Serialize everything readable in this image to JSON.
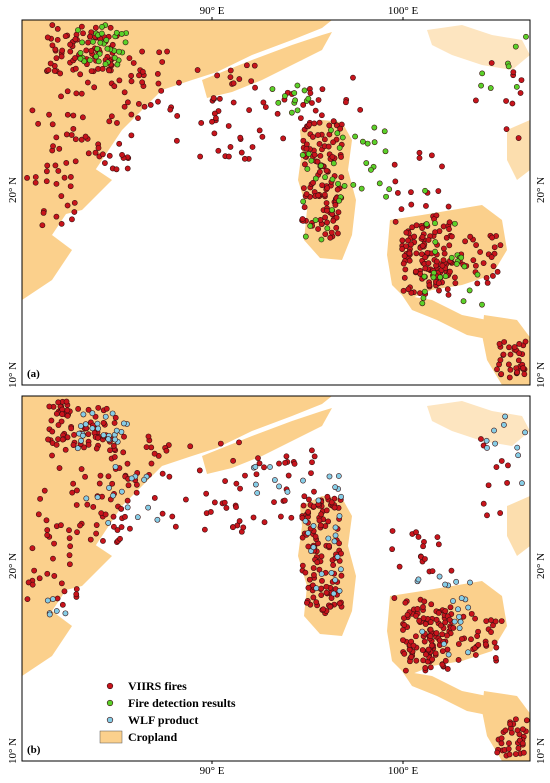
{
  "panels": [
    {
      "label": "(a)",
      "top_ticks": [
        "90° E",
        "100° E"
      ],
      "left_ticks": [
        "20° N",
        "10° N"
      ],
      "right_ticks": [
        "20° N",
        "10° N"
      ]
    },
    {
      "label": "(b)",
      "bottom_ticks": [
        "90° E",
        "100° E"
      ],
      "left_ticks": [
        "20° N",
        "10° N"
      ],
      "right_ticks": [
        "20° N",
        "10° N"
      ]
    }
  ],
  "legend": {
    "items": [
      "VIIRS fires",
      "Fire detection results",
      "WLF product",
      "Cropland"
    ]
  }
}
